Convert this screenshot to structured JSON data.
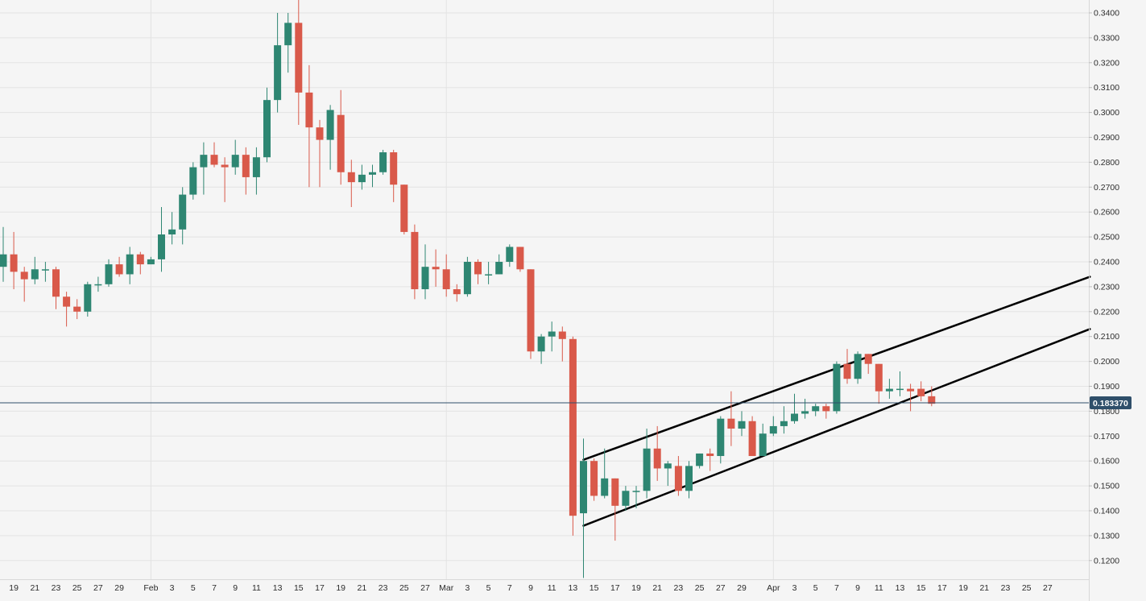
{
  "colors": {
    "background": "#f5f5f5",
    "grid": "#e3e3e3",
    "up": "#2e8672",
    "down": "#d9594a",
    "axis_text": "#2c2c2c",
    "current_price_line": "#2f4f6a",
    "trendline": "#000000"
  },
  "current_price_label": "0.183370",
  "chart_data": {
    "type": "candlestick",
    "title": "",
    "xlabel": "",
    "ylabel": "",
    "ylim": [
      0.113,
      0.344
    ],
    "y_ticks": [
      "0.1200",
      "0.1300",
      "0.1400",
      "0.1500",
      "0.1600",
      "0.1700",
      "0.1800",
      "0.1900",
      "0.2000",
      "0.2100",
      "0.2200",
      "0.2300",
      "0.2400",
      "0.2500",
      "0.2600",
      "0.2700",
      "0.2800",
      "0.2900",
      "0.3000",
      "0.3100",
      "0.3200",
      "0.3300",
      "0.3400"
    ],
    "x_ticks": [
      "19",
      "21",
      "23",
      "25",
      "27",
      "29",
      "Feb",
      "3",
      "5",
      "7",
      "9",
      "11",
      "13",
      "15",
      "17",
      "19",
      "21",
      "23",
      "25",
      "27",
      "Mar",
      "3",
      "5",
      "7",
      "9",
      "11",
      "13",
      "15",
      "17",
      "19",
      "21",
      "23",
      "25",
      "27",
      "29",
      "Apr",
      "3",
      "5",
      "7",
      "9",
      "11",
      "13",
      "15",
      "17",
      "19",
      "21",
      "23",
      "25",
      "27"
    ],
    "current_price": 0.18337,
    "candles": [
      {
        "date": "Jan 18",
        "o": 0.238,
        "h": 0.254,
        "l": 0.232,
        "c": 0.243
      },
      {
        "date": "Jan 19",
        "o": 0.243,
        "h": 0.252,
        "l": 0.229,
        "c": 0.236
      },
      {
        "date": "Jan 20",
        "o": 0.236,
        "h": 0.238,
        "l": 0.224,
        "c": 0.233
      },
      {
        "date": "Jan 21",
        "o": 0.233,
        "h": 0.242,
        "l": 0.231,
        "c": 0.237
      },
      {
        "date": "Jan 22",
        "o": 0.237,
        "h": 0.24,
        "l": 0.232,
        "c": 0.237
      },
      {
        "date": "Jan 23",
        "o": 0.237,
        "h": 0.238,
        "l": 0.221,
        "c": 0.226
      },
      {
        "date": "Jan 24",
        "o": 0.226,
        "h": 0.228,
        "l": 0.214,
        "c": 0.222
      },
      {
        "date": "Jan 25",
        "o": 0.222,
        "h": 0.225,
        "l": 0.217,
        "c": 0.22
      },
      {
        "date": "Jan 26",
        "o": 0.22,
        "h": 0.232,
        "l": 0.218,
        "c": 0.231
      },
      {
        "date": "Jan 27",
        "o": 0.231,
        "h": 0.234,
        "l": 0.228,
        "c": 0.231
      },
      {
        "date": "Jan 28",
        "o": 0.231,
        "h": 0.241,
        "l": 0.23,
        "c": 0.239
      },
      {
        "date": "Jan 29",
        "o": 0.239,
        "h": 0.242,
        "l": 0.234,
        "c": 0.235
      },
      {
        "date": "Jan 30",
        "o": 0.235,
        "h": 0.246,
        "l": 0.231,
        "c": 0.243
      },
      {
        "date": "Jan 31",
        "o": 0.243,
        "h": 0.244,
        "l": 0.235,
        "c": 0.239
      },
      {
        "date": "Feb 1",
        "o": 0.239,
        "h": 0.242,
        "l": 0.239,
        "c": 0.241
      },
      {
        "date": "Feb 2",
        "o": 0.241,
        "h": 0.262,
        "l": 0.236,
        "c": 0.251
      },
      {
        "date": "Feb 3",
        "o": 0.251,
        "h": 0.26,
        "l": 0.247,
        "c": 0.253
      },
      {
        "date": "Feb 4",
        "o": 0.253,
        "h": 0.27,
        "l": 0.247,
        "c": 0.267
      },
      {
        "date": "Feb 5",
        "o": 0.267,
        "h": 0.28,
        "l": 0.265,
        "c": 0.278
      },
      {
        "date": "Feb 6",
        "o": 0.278,
        "h": 0.288,
        "l": 0.267,
        "c": 0.283
      },
      {
        "date": "Feb 7",
        "o": 0.283,
        "h": 0.288,
        "l": 0.278,
        "c": 0.279
      },
      {
        "date": "Feb 8",
        "o": 0.279,
        "h": 0.282,
        "l": 0.264,
        "c": 0.278
      },
      {
        "date": "Feb 9",
        "o": 0.278,
        "h": 0.289,
        "l": 0.275,
        "c": 0.283
      },
      {
        "date": "Feb 10",
        "o": 0.283,
        "h": 0.286,
        "l": 0.267,
        "c": 0.274
      },
      {
        "date": "Feb 11",
        "o": 0.274,
        "h": 0.286,
        "l": 0.267,
        "c": 0.282
      },
      {
        "date": "Feb 12",
        "o": 0.282,
        "h": 0.31,
        "l": 0.28,
        "c": 0.305
      },
      {
        "date": "Feb 13",
        "o": 0.305,
        "h": 0.34,
        "l": 0.3,
        "c": 0.327
      },
      {
        "date": "Feb 14",
        "o": 0.327,
        "h": 0.34,
        "l": 0.316,
        "c": 0.336
      },
      {
        "date": "Feb 15",
        "o": 0.336,
        "h": 0.348,
        "l": 0.295,
        "c": 0.308
      },
      {
        "date": "Feb 16",
        "o": 0.308,
        "h": 0.319,
        "l": 0.27,
        "c": 0.294
      },
      {
        "date": "Feb 17",
        "o": 0.294,
        "h": 0.297,
        "l": 0.27,
        "c": 0.289
      },
      {
        "date": "Feb 18",
        "o": 0.289,
        "h": 0.303,
        "l": 0.277,
        "c": 0.301
      },
      {
        "date": "Feb 19",
        "o": 0.299,
        "h": 0.309,
        "l": 0.271,
        "c": 0.276
      },
      {
        "date": "Feb 20",
        "o": 0.276,
        "h": 0.281,
        "l": 0.262,
        "c": 0.272
      },
      {
        "date": "Feb 21",
        "o": 0.272,
        "h": 0.279,
        "l": 0.269,
        "c": 0.275
      },
      {
        "date": "Feb 22",
        "o": 0.275,
        "h": 0.279,
        "l": 0.27,
        "c": 0.276
      },
      {
        "date": "Feb 23",
        "o": 0.276,
        "h": 0.285,
        "l": 0.275,
        "c": 0.284
      },
      {
        "date": "Feb 24",
        "o": 0.284,
        "h": 0.285,
        "l": 0.264,
        "c": 0.271
      },
      {
        "date": "Feb 25",
        "o": 0.271,
        "h": 0.271,
        "l": 0.251,
        "c": 0.252
      },
      {
        "date": "Feb 26",
        "o": 0.252,
        "h": 0.255,
        "l": 0.225,
        "c": 0.229
      },
      {
        "date": "Feb 27",
        "o": 0.229,
        "h": 0.247,
        "l": 0.225,
        "c": 0.238
      },
      {
        "date": "Feb 28",
        "o": 0.238,
        "h": 0.245,
        "l": 0.23,
        "c": 0.237
      },
      {
        "date": "Mar 1",
        "o": 0.237,
        "h": 0.243,
        "l": 0.226,
        "c": 0.229
      },
      {
        "date": "Mar 2",
        "o": 0.229,
        "h": 0.231,
        "l": 0.224,
        "c": 0.227
      },
      {
        "date": "Mar 3",
        "o": 0.227,
        "h": 0.242,
        "l": 0.226,
        "c": 0.24
      },
      {
        "date": "Mar 4",
        "o": 0.24,
        "h": 0.241,
        "l": 0.231,
        "c": 0.235
      },
      {
        "date": "Mar 5",
        "o": 0.235,
        "h": 0.24,
        "l": 0.231,
        "c": 0.235
      },
      {
        "date": "Mar 6",
        "o": 0.235,
        "h": 0.243,
        "l": 0.235,
        "c": 0.24
      },
      {
        "date": "Mar 7",
        "o": 0.24,
        "h": 0.247,
        "l": 0.238,
        "c": 0.246
      },
      {
        "date": "Mar 8",
        "o": 0.246,
        "h": 0.246,
        "l": 0.236,
        "c": 0.237
      },
      {
        "date": "Mar 9",
        "o": 0.237,
        "h": 0.237,
        "l": 0.201,
        "c": 0.204
      },
      {
        "date": "Mar 10",
        "o": 0.204,
        "h": 0.211,
        "l": 0.199,
        "c": 0.21
      },
      {
        "date": "Mar 11",
        "o": 0.21,
        "h": 0.216,
        "l": 0.204,
        "c": 0.212
      },
      {
        "date": "Mar 12",
        "o": 0.212,
        "h": 0.214,
        "l": 0.2,
        "c": 0.209
      },
      {
        "date": "Mar 13",
        "o": 0.209,
        "h": 0.21,
        "l": 0.13,
        "c": 0.138
      },
      {
        "date": "Mar 14",
        "o": 0.139,
        "h": 0.169,
        "l": 0.113,
        "c": 0.16
      },
      {
        "date": "Mar 15",
        "o": 0.16,
        "h": 0.161,
        "l": 0.144,
        "c": 0.146
      },
      {
        "date": "Mar 16",
        "o": 0.146,
        "h": 0.165,
        "l": 0.145,
        "c": 0.153
      },
      {
        "date": "Mar 17",
        "o": 0.153,
        "h": 0.153,
        "l": 0.128,
        "c": 0.142
      },
      {
        "date": "Mar 18",
        "o": 0.142,
        "h": 0.15,
        "l": 0.14,
        "c": 0.148
      },
      {
        "date": "Mar 19",
        "o": 0.148,
        "h": 0.15,
        "l": 0.141,
        "c": 0.148
      },
      {
        "date": "Mar 20",
        "o": 0.148,
        "h": 0.173,
        "l": 0.145,
        "c": 0.165
      },
      {
        "date": "Mar 21",
        "o": 0.165,
        "h": 0.174,
        "l": 0.152,
        "c": 0.157
      },
      {
        "date": "Mar 22",
        "o": 0.157,
        "h": 0.16,
        "l": 0.15,
        "c": 0.159
      },
      {
        "date": "Mar 23",
        "o": 0.158,
        "h": 0.162,
        "l": 0.146,
        "c": 0.148
      },
      {
        "date": "Mar 24",
        "o": 0.148,
        "h": 0.16,
        "l": 0.145,
        "c": 0.158
      },
      {
        "date": "Mar 25",
        "o": 0.158,
        "h": 0.163,
        "l": 0.157,
        "c": 0.163
      },
      {
        "date": "Mar 26",
        "o": 0.163,
        "h": 0.165,
        "l": 0.156,
        "c": 0.162
      },
      {
        "date": "Mar 27",
        "o": 0.162,
        "h": 0.178,
        "l": 0.159,
        "c": 0.177
      },
      {
        "date": "Mar 28",
        "o": 0.177,
        "h": 0.188,
        "l": 0.166,
        "c": 0.173
      },
      {
        "date": "Mar 29",
        "o": 0.173,
        "h": 0.18,
        "l": 0.17,
        "c": 0.176
      },
      {
        "date": "Mar 30",
        "o": 0.176,
        "h": 0.178,
        "l": 0.162,
        "c": 0.162
      },
      {
        "date": "Mar 31",
        "o": 0.162,
        "h": 0.175,
        "l": 0.162,
        "c": 0.171
      },
      {
        "date": "Apr 1",
        "o": 0.171,
        "h": 0.178,
        "l": 0.17,
        "c": 0.174
      },
      {
        "date": "Apr 2",
        "o": 0.174,
        "h": 0.182,
        "l": 0.171,
        "c": 0.176
      },
      {
        "date": "Apr 3",
        "o": 0.176,
        "h": 0.187,
        "l": 0.175,
        "c": 0.179
      },
      {
        "date": "Apr 4",
        "o": 0.179,
        "h": 0.185,
        "l": 0.177,
        "c": 0.18
      },
      {
        "date": "Apr 5",
        "o": 0.18,
        "h": 0.183,
        "l": 0.178,
        "c": 0.182
      },
      {
        "date": "Apr 6",
        "o": 0.182,
        "h": 0.183,
        "l": 0.177,
        "c": 0.18
      },
      {
        "date": "Apr 7",
        "o": 0.18,
        "h": 0.2,
        "l": 0.179,
        "c": 0.199
      },
      {
        "date": "Apr 8",
        "o": 0.199,
        "h": 0.205,
        "l": 0.191,
        "c": 0.193
      },
      {
        "date": "Apr 9",
        "o": 0.193,
        "h": 0.204,
        "l": 0.191,
        "c": 0.203
      },
      {
        "date": "Apr 10",
        "o": 0.203,
        "h": 0.203,
        "l": 0.195,
        "c": 0.199
      },
      {
        "date": "Apr 11",
        "o": 0.199,
        "h": 0.199,
        "l": 0.183,
        "c": 0.188
      },
      {
        "date": "Apr 12",
        "o": 0.188,
        "h": 0.193,
        "l": 0.185,
        "c": 0.189
      },
      {
        "date": "Apr 13",
        "o": 0.189,
        "h": 0.196,
        "l": 0.186,
        "c": 0.189
      },
      {
        "date": "Apr 14",
        "o": 0.189,
        "h": 0.191,
        "l": 0.18,
        "c": 0.188
      },
      {
        "date": "Apr 15",
        "o": 0.189,
        "h": 0.192,
        "l": 0.184,
        "c": 0.186
      },
      {
        "date": "Apr 16",
        "o": 0.186,
        "h": 0.19,
        "l": 0.182,
        "c": 0.183
      }
    ],
    "trendlines": [
      {
        "name": "",
        "start": {
          "date": "Mar 14",
          "price": 0.1605
        },
        "end": {
          "date": "May 1",
          "price": 0.234
        }
      },
      {
        "name": "",
        "start": {
          "date": "Mar 14",
          "price": 0.134
        },
        "end": {
          "date": "May 1",
          "price": 0.213
        }
      }
    ]
  }
}
